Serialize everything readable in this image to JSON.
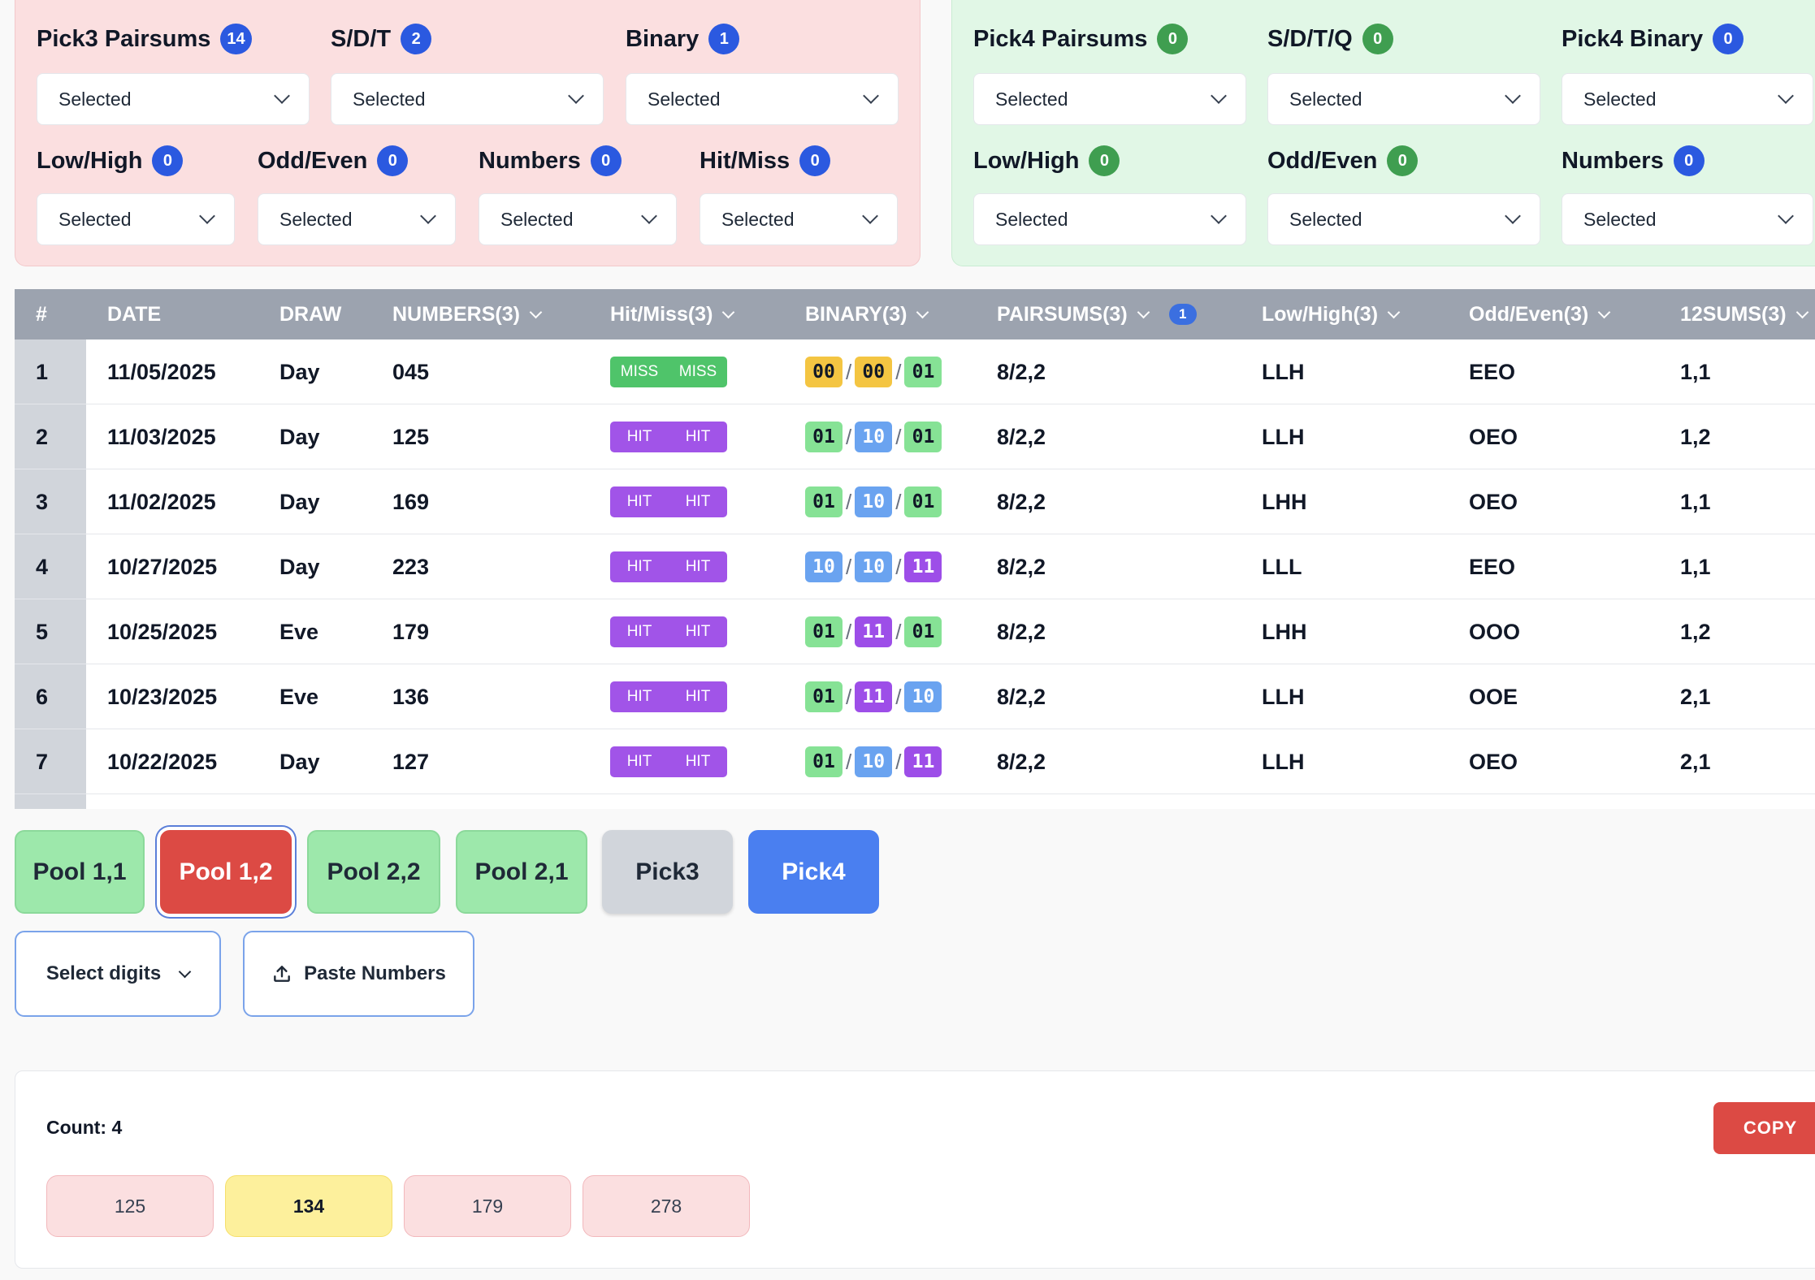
{
  "pick3_panel": {
    "filters_row1": [
      {
        "label": "Pick3 Pairsums",
        "count": "14",
        "value": "Selected"
      },
      {
        "label": "S/D/T",
        "count": "2",
        "value": "Selected"
      },
      {
        "label": "Binary",
        "count": "1",
        "value": "Selected"
      }
    ],
    "filters_row2": [
      {
        "label": "Low/High",
        "count": "0",
        "value": "Selected"
      },
      {
        "label": "Odd/Even",
        "count": "0",
        "value": "Selected"
      },
      {
        "label": "Numbers",
        "count": "0",
        "value": "Selected"
      },
      {
        "label": "Hit/Miss",
        "count": "0",
        "value": "Selected"
      }
    ]
  },
  "pick4_panel": {
    "filters_row1": [
      {
        "label": "Pick4 Pairsums",
        "count": "0",
        "value": "Selected"
      },
      {
        "label": "S/D/T/Q",
        "count": "0",
        "value": "Selected"
      },
      {
        "label": "Pick4 Binary",
        "count": "0",
        "value": "Selected"
      }
    ],
    "filters_row2": [
      {
        "label": "Low/High",
        "count": "0",
        "value": "Selected"
      },
      {
        "label": "Odd/Even",
        "count": "0",
        "value": "Selected"
      },
      {
        "label": "Numbers",
        "count": "0",
        "value": "Selected"
      }
    ]
  },
  "table": {
    "headers": {
      "index": "#",
      "date": "DATE",
      "draw": "DRAW",
      "numbers": "NUMBERS(3)",
      "hitmiss": "Hit/Miss(3)",
      "binary": "BINARY(3)",
      "pairsums": "PAIRSUMS(3)",
      "pairsums_badge": "1",
      "lowhigh": "Low/High(3)",
      "oddeven": "Odd/Even(3)",
      "sums12": "12SUMS(3)"
    },
    "rows": [
      {
        "idx": "1",
        "date": "11/05/2025",
        "draw": "Day",
        "numbers": "045",
        "hm1": "MISS",
        "hm2": "MISS",
        "hm_type": "miss",
        "bin": [
          "00",
          "00",
          "01"
        ],
        "sep": "/",
        "pairsums": "8/2,2",
        "lowhigh": "LLH",
        "oddeven": "EEO",
        "sums12": "1,1"
      },
      {
        "idx": "2",
        "date": "11/03/2025",
        "draw": "Day",
        "numbers": "125",
        "hm1": "HIT",
        "hm2": "HIT",
        "hm_type": "hit",
        "bin": [
          "01",
          "10",
          "01"
        ],
        "sep": "/",
        "pairsums": "8/2,2",
        "lowhigh": "LLH",
        "oddeven": "OEO",
        "sums12": "1,2"
      },
      {
        "idx": "3",
        "date": "11/02/2025",
        "draw": "Day",
        "numbers": "169",
        "hm1": "HIT",
        "hm2": "HIT",
        "hm_type": "hit",
        "bin": [
          "01",
          "10",
          "01"
        ],
        "sep": "/",
        "pairsums": "8/2,2",
        "lowhigh": "LHH",
        "oddeven": "OEO",
        "sums12": "1,1"
      },
      {
        "idx": "4",
        "date": "10/27/2025",
        "draw": "Day",
        "numbers": "223",
        "hm1": "HIT",
        "hm2": "HIT",
        "hm_type": "hit",
        "bin": [
          "10",
          "10",
          "11"
        ],
        "sep": "/",
        "pairsums": "8/2,2",
        "lowhigh": "LLL",
        "oddeven": "EEO",
        "sums12": "1,1"
      },
      {
        "idx": "5",
        "date": "10/25/2025",
        "draw": "Eve",
        "numbers": "179",
        "hm1": "HIT",
        "hm2": "HIT",
        "hm_type": "hit",
        "bin": [
          "01",
          "11",
          "01"
        ],
        "sep": "/",
        "pairsums": "8/2,2",
        "lowhigh": "LHH",
        "oddeven": "OOO",
        "sums12": "1,2"
      },
      {
        "idx": "6",
        "date": "10/23/2025",
        "draw": "Eve",
        "numbers": "136",
        "hm1": "HIT",
        "hm2": "HIT",
        "hm_type": "hit",
        "bin": [
          "01",
          "11",
          "10"
        ],
        "sep": "/",
        "pairsums": "8/2,2",
        "lowhigh": "LLH",
        "oddeven": "OOE",
        "sums12": "2,1"
      },
      {
        "idx": "7",
        "date": "10/22/2025",
        "draw": "Day",
        "numbers": "127",
        "hm1": "HIT",
        "hm2": "HIT",
        "hm_type": "hit",
        "bin": [
          "01",
          "10",
          "11"
        ],
        "sep": "/",
        "pairsums": "8/2,2",
        "lowhigh": "LLH",
        "oddeven": "OEO",
        "sums12": "2,1"
      }
    ]
  },
  "pools": [
    {
      "label": "Pool 1,1",
      "style": "green"
    },
    {
      "label": "Pool 1,2",
      "style": "red"
    },
    {
      "label": "Pool 2,2",
      "style": "green"
    },
    {
      "label": "Pool 2,1",
      "style": "green"
    },
    {
      "label": "Pick3",
      "style": "gray"
    },
    {
      "label": "Pick4",
      "style": "blue"
    }
  ],
  "actions": {
    "select_digits": "Select digits",
    "paste_numbers": "Paste Numbers"
  },
  "result": {
    "count_label": "Count: 4",
    "copy_label": "COPY",
    "chips": [
      {
        "value": "125",
        "style": "pink"
      },
      {
        "value": "134",
        "style": "yellow"
      },
      {
        "value": "179",
        "style": "pink"
      },
      {
        "value": "278",
        "style": "pink"
      }
    ]
  },
  "colors": {
    "pick3_panel_bg": "#fbdfe0",
    "pick4_panel_bg": "#e1f7e6",
    "badge_blue": "#2b59e0",
    "badge_green": "#3f9e50",
    "hit": "#a154e8",
    "miss": "#4fc46a",
    "copy_red": "#dc4a44"
  }
}
